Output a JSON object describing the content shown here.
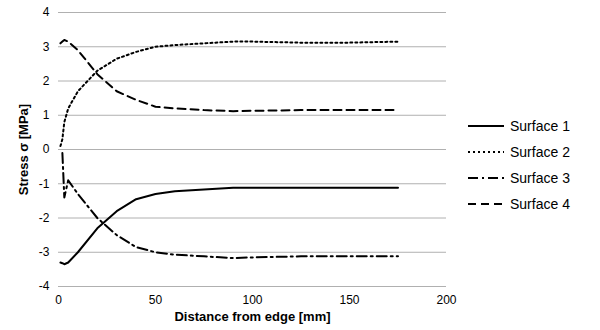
{
  "chart_data": {
    "type": "line",
    "x_label": "Distance from edge [mm]",
    "y_label": "Stress σ [MPa]",
    "x": [
      1,
      2,
      3,
      5,
      10,
      20,
      30,
      40,
      50,
      60,
      75,
      90,
      100,
      125,
      150,
      175
    ],
    "series": [
      {
        "name": "Surface 1",
        "color": "#000000",
        "line_style": "solid",
        "values": [
          -3.3,
          -3.32,
          -3.35,
          -3.3,
          -3.0,
          -2.3,
          -1.8,
          -1.45,
          -1.3,
          -1.22,
          -1.17,
          -1.12,
          -1.12,
          -1.12,
          -1.12,
          -1.12
        ]
      },
      {
        "name": "Surface 2",
        "color": "#000000",
        "line_style": "dotted",
        "values": [
          0.1,
          0.3,
          0.8,
          1.2,
          1.7,
          2.3,
          2.65,
          2.85,
          3.0,
          3.05,
          3.1,
          3.15,
          3.15,
          3.12,
          3.12,
          3.15
        ]
      },
      {
        "name": "Surface 3",
        "color": "#000000",
        "line_style": "dashdot",
        "values": [
          null,
          -0.1,
          -1.4,
          -0.9,
          -1.3,
          -2.0,
          -2.5,
          -2.85,
          -3.0,
          -3.07,
          -3.12,
          -3.17,
          -3.15,
          -3.12,
          -3.12,
          -3.12
        ]
      },
      {
        "name": "Surface 4",
        "color": "#000000",
        "line_style": "dashed",
        "values": [
          3.1,
          3.15,
          3.2,
          3.15,
          2.9,
          2.2,
          1.7,
          1.45,
          1.25,
          1.2,
          1.15,
          1.12,
          1.13,
          1.15,
          1.15,
          1.15
        ]
      }
    ],
    "xlim": [
      0,
      200
    ],
    "xticks": [
      0,
      50,
      100,
      150,
      200
    ],
    "ylim": [
      -4,
      4
    ],
    "yticks": [
      -4,
      -3,
      -2,
      -1,
      0,
      1,
      2,
      3,
      4
    ],
    "grid": true,
    "legend": "right"
  }
}
